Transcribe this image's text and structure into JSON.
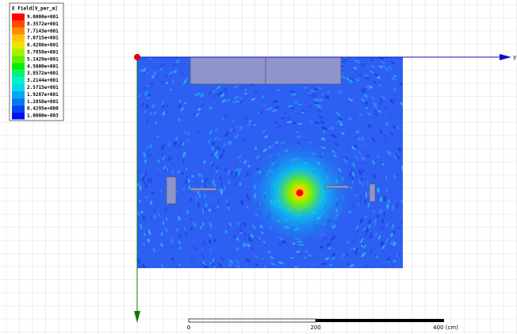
{
  "legend": {
    "title": "E Field[V_per_m]",
    "entries": [
      {
        "label": "9.0000e+001",
        "color": "#ff0000"
      },
      {
        "label": "8.3572e+001",
        "color": "#ff4a00"
      },
      {
        "label": "7.7143e+001",
        "color": "#ff8c00"
      },
      {
        "label": "7.0715e+001",
        "color": "#ffc400"
      },
      {
        "label": "6.4286e+001",
        "color": "#e6e600"
      },
      {
        "label": "5.7858e+001",
        "color": "#a8f000"
      },
      {
        "label": "5.1429e+001",
        "color": "#5ef000"
      },
      {
        "label": "4.5000e+001",
        "color": "#00f000"
      },
      {
        "label": "3.8572e+001",
        "color": "#00f07a"
      },
      {
        "label": "3.2144e+001",
        "color": "#00f0c8"
      },
      {
        "label": "2.5715e+001",
        "color": "#00d8f0"
      },
      {
        "label": "1.9287e+001",
        "color": "#00a8f0"
      },
      {
        "label": "1.2858e+001",
        "color": "#0078f0"
      },
      {
        "label": "6.4295e+000",
        "color": "#0046f0"
      },
      {
        "label": "1.0000e-003",
        "color": "#0010f0"
      }
    ]
  },
  "axis": {
    "label": "y"
  },
  "scale_bar": {
    "labels": [
      "0",
      "200",
      "400 (cm)"
    ]
  }
}
